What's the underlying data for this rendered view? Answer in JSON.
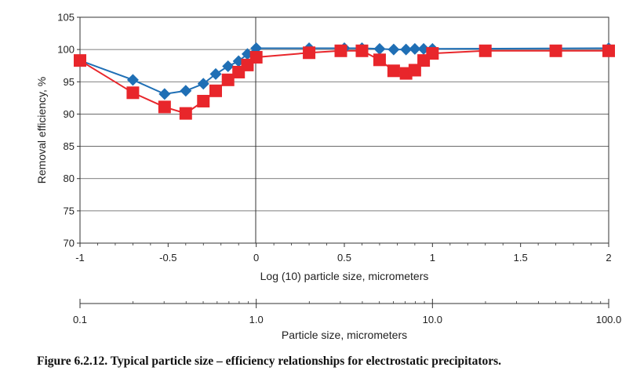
{
  "chart_data": [
    {
      "type": "line",
      "title": "",
      "xlabel": "Log (10) particle size, micrometers",
      "ylabel": "Removal efficiency, %",
      "xlim": [
        -1,
        2
      ],
      "ylim": [
        70,
        105
      ],
      "xticks": [
        -1,
        -0.5,
        0,
        0.5,
        1,
        1.5,
        2
      ],
      "xtick_labels": [
        "-1",
        "-0.5",
        "0",
        "0.5",
        "1",
        "1.5",
        "2"
      ],
      "yticks": [
        70,
        75,
        80,
        85,
        90,
        95,
        100,
        105
      ],
      "ytick_labels": [
        "70",
        "75",
        "80",
        "85",
        "90",
        "95",
        "100",
        "105"
      ],
      "grid": "horizontal",
      "series": [
        {
          "name": "diamond series",
          "color": "#1f6fb5",
          "marker": "diamond",
          "x": [
            -1,
            -0.7,
            -0.52,
            -0.4,
            -0.3,
            -0.23,
            -0.16,
            -0.1,
            -0.05,
            0,
            0.3,
            0.5,
            0.6,
            0.7,
            0.78,
            0.85,
            0.9,
            0.95,
            1.0,
            2.0
          ],
          "y": [
            98.3,
            95.3,
            93.1,
            93.6,
            94.7,
            96.2,
            97.4,
            98.2,
            99.3,
            100.2,
            100.2,
            100.2,
            100.2,
            100.1,
            100.0,
            100.0,
            100.1,
            100.1,
            100.1,
            100.2
          ]
        },
        {
          "name": "square series",
          "color": "#e8262b",
          "marker": "square",
          "x": [
            -1,
            -0.7,
            -0.52,
            -0.4,
            -0.3,
            -0.23,
            -0.16,
            -0.1,
            -0.05,
            0,
            0.3,
            0.48,
            0.6,
            0.7,
            0.78,
            0.85,
            0.9,
            0.95,
            1.0,
            1.3,
            1.7,
            2.0
          ],
          "y": [
            98.3,
            93.3,
            91.1,
            90.1,
            92.0,
            93.6,
            95.3,
            96.5,
            97.6,
            98.8,
            99.5,
            99.8,
            99.8,
            98.4,
            96.7,
            96.3,
            96.8,
            98.3,
            99.4,
            99.8,
            99.8,
            99.8
          ]
        }
      ]
    },
    {
      "type": "axis",
      "xlabel": "Particle size, micrometers",
      "scale": "log",
      "xlim": [
        0.1,
        100
      ],
      "xticks": [
        0.1,
        1,
        10,
        100
      ],
      "xtick_labels": [
        "0.1",
        "1.0",
        "10.0",
        "100.0"
      ]
    }
  ],
  "caption": "Figure 6.2.12. Typical particle size – efficiency relationships for electrostatic precipitators."
}
